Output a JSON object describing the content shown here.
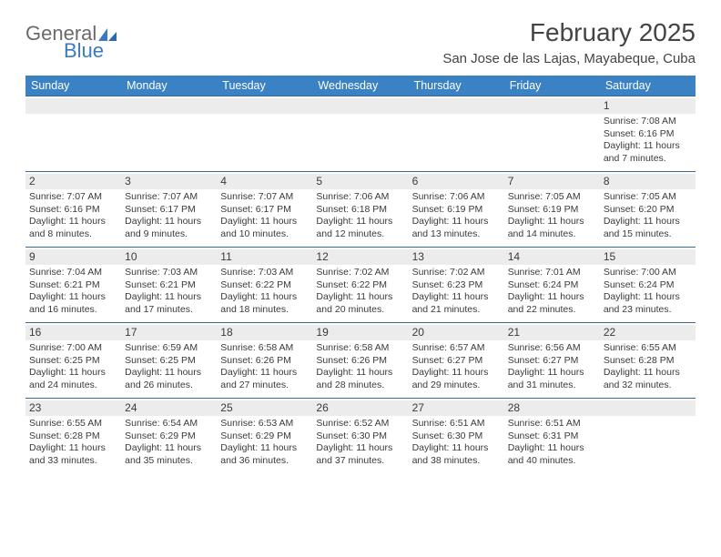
{
  "logo": {
    "word1": "General",
    "word2": "Blue"
  },
  "header": {
    "month_title": "February 2025",
    "location": "San Jose de las Lajas, Mayabeque, Cuba"
  },
  "weekdays": [
    "Sunday",
    "Monday",
    "Tuesday",
    "Wednesday",
    "Thursday",
    "Friday",
    "Saturday"
  ],
  "colors": {
    "header_bar": "#3a82c4",
    "week_divider": "#3a6a9a",
    "daynum_bg": "#ececec",
    "logo_blue": "#3a7bbf",
    "text": "#3a3a3a"
  },
  "weeks": [
    [
      {
        "empty": true
      },
      {
        "empty": true
      },
      {
        "empty": true
      },
      {
        "empty": true
      },
      {
        "empty": true
      },
      {
        "empty": true
      },
      {
        "num": "1",
        "sunrise": "Sunrise: 7:08 AM",
        "sunset": "Sunset: 6:16 PM",
        "day1": "Daylight: 11 hours",
        "day2": "and 7 minutes."
      }
    ],
    [
      {
        "num": "2",
        "sunrise": "Sunrise: 7:07 AM",
        "sunset": "Sunset: 6:16 PM",
        "day1": "Daylight: 11 hours",
        "day2": "and 8 minutes."
      },
      {
        "num": "3",
        "sunrise": "Sunrise: 7:07 AM",
        "sunset": "Sunset: 6:17 PM",
        "day1": "Daylight: 11 hours",
        "day2": "and 9 minutes."
      },
      {
        "num": "4",
        "sunrise": "Sunrise: 7:07 AM",
        "sunset": "Sunset: 6:17 PM",
        "day1": "Daylight: 11 hours",
        "day2": "and 10 minutes."
      },
      {
        "num": "5",
        "sunrise": "Sunrise: 7:06 AM",
        "sunset": "Sunset: 6:18 PM",
        "day1": "Daylight: 11 hours",
        "day2": "and 12 minutes."
      },
      {
        "num": "6",
        "sunrise": "Sunrise: 7:06 AM",
        "sunset": "Sunset: 6:19 PM",
        "day1": "Daylight: 11 hours",
        "day2": "and 13 minutes."
      },
      {
        "num": "7",
        "sunrise": "Sunrise: 7:05 AM",
        "sunset": "Sunset: 6:19 PM",
        "day1": "Daylight: 11 hours",
        "day2": "and 14 minutes."
      },
      {
        "num": "8",
        "sunrise": "Sunrise: 7:05 AM",
        "sunset": "Sunset: 6:20 PM",
        "day1": "Daylight: 11 hours",
        "day2": "and 15 minutes."
      }
    ],
    [
      {
        "num": "9",
        "sunrise": "Sunrise: 7:04 AM",
        "sunset": "Sunset: 6:21 PM",
        "day1": "Daylight: 11 hours",
        "day2": "and 16 minutes."
      },
      {
        "num": "10",
        "sunrise": "Sunrise: 7:03 AM",
        "sunset": "Sunset: 6:21 PM",
        "day1": "Daylight: 11 hours",
        "day2": "and 17 minutes."
      },
      {
        "num": "11",
        "sunrise": "Sunrise: 7:03 AM",
        "sunset": "Sunset: 6:22 PM",
        "day1": "Daylight: 11 hours",
        "day2": "and 18 minutes."
      },
      {
        "num": "12",
        "sunrise": "Sunrise: 7:02 AM",
        "sunset": "Sunset: 6:22 PM",
        "day1": "Daylight: 11 hours",
        "day2": "and 20 minutes."
      },
      {
        "num": "13",
        "sunrise": "Sunrise: 7:02 AM",
        "sunset": "Sunset: 6:23 PM",
        "day1": "Daylight: 11 hours",
        "day2": "and 21 minutes."
      },
      {
        "num": "14",
        "sunrise": "Sunrise: 7:01 AM",
        "sunset": "Sunset: 6:24 PM",
        "day1": "Daylight: 11 hours",
        "day2": "and 22 minutes."
      },
      {
        "num": "15",
        "sunrise": "Sunrise: 7:00 AM",
        "sunset": "Sunset: 6:24 PM",
        "day1": "Daylight: 11 hours",
        "day2": "and 23 minutes."
      }
    ],
    [
      {
        "num": "16",
        "sunrise": "Sunrise: 7:00 AM",
        "sunset": "Sunset: 6:25 PM",
        "day1": "Daylight: 11 hours",
        "day2": "and 24 minutes."
      },
      {
        "num": "17",
        "sunrise": "Sunrise: 6:59 AM",
        "sunset": "Sunset: 6:25 PM",
        "day1": "Daylight: 11 hours",
        "day2": "and 26 minutes."
      },
      {
        "num": "18",
        "sunrise": "Sunrise: 6:58 AM",
        "sunset": "Sunset: 6:26 PM",
        "day1": "Daylight: 11 hours",
        "day2": "and 27 minutes."
      },
      {
        "num": "19",
        "sunrise": "Sunrise: 6:58 AM",
        "sunset": "Sunset: 6:26 PM",
        "day1": "Daylight: 11 hours",
        "day2": "and 28 minutes."
      },
      {
        "num": "20",
        "sunrise": "Sunrise: 6:57 AM",
        "sunset": "Sunset: 6:27 PM",
        "day1": "Daylight: 11 hours",
        "day2": "and 29 minutes."
      },
      {
        "num": "21",
        "sunrise": "Sunrise: 6:56 AM",
        "sunset": "Sunset: 6:27 PM",
        "day1": "Daylight: 11 hours",
        "day2": "and 31 minutes."
      },
      {
        "num": "22",
        "sunrise": "Sunrise: 6:55 AM",
        "sunset": "Sunset: 6:28 PM",
        "day1": "Daylight: 11 hours",
        "day2": "and 32 minutes."
      }
    ],
    [
      {
        "num": "23",
        "sunrise": "Sunrise: 6:55 AM",
        "sunset": "Sunset: 6:28 PM",
        "day1": "Daylight: 11 hours",
        "day2": "and 33 minutes."
      },
      {
        "num": "24",
        "sunrise": "Sunrise: 6:54 AM",
        "sunset": "Sunset: 6:29 PM",
        "day1": "Daylight: 11 hours",
        "day2": "and 35 minutes."
      },
      {
        "num": "25",
        "sunrise": "Sunrise: 6:53 AM",
        "sunset": "Sunset: 6:29 PM",
        "day1": "Daylight: 11 hours",
        "day2": "and 36 minutes."
      },
      {
        "num": "26",
        "sunrise": "Sunrise: 6:52 AM",
        "sunset": "Sunset: 6:30 PM",
        "day1": "Daylight: 11 hours",
        "day2": "and 37 minutes."
      },
      {
        "num": "27",
        "sunrise": "Sunrise: 6:51 AM",
        "sunset": "Sunset: 6:30 PM",
        "day1": "Daylight: 11 hours",
        "day2": "and 38 minutes."
      },
      {
        "num": "28",
        "sunrise": "Sunrise: 6:51 AM",
        "sunset": "Sunset: 6:31 PM",
        "day1": "Daylight: 11 hours",
        "day2": "and 40 minutes."
      },
      {
        "empty": true
      }
    ]
  ]
}
